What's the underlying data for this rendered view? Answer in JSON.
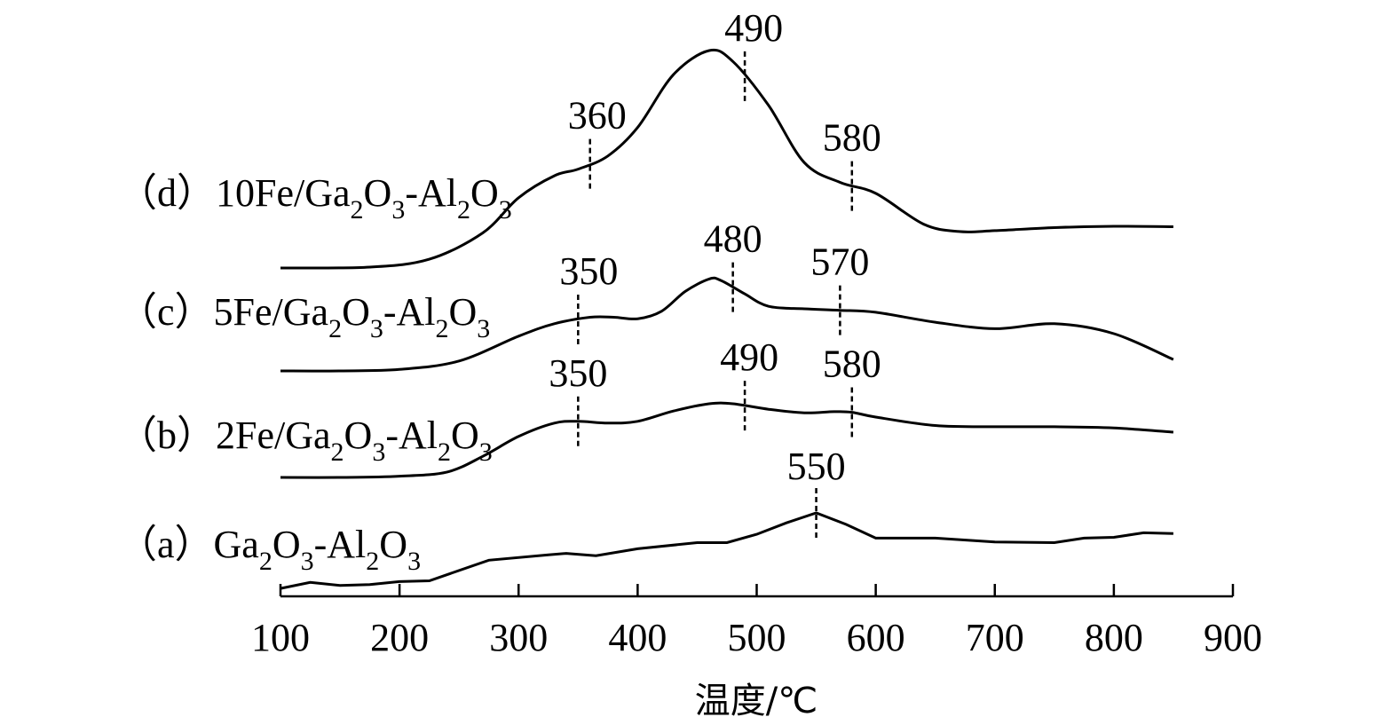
{
  "chart_data": {
    "type": "line",
    "xlabel": "温度/℃",
    "ylabel": "",
    "xlim": [
      100,
      900
    ],
    "x_ticks": [
      100,
      200,
      300,
      400,
      500,
      600,
      700,
      800,
      900
    ],
    "y_axis_shown": false,
    "grid": false,
    "series": [
      {
        "id": "a",
        "label_parts": [
          {
            "t": "（a）Ga"
          },
          {
            "t": "2",
            "sub": true
          },
          {
            "t": "O"
          },
          {
            "t": "3",
            "sub": true
          },
          {
            "t": "-Al"
          },
          {
            "t": "2",
            "sub": true
          },
          {
            "t": "O"
          },
          {
            "t": "3",
            "sub": true
          }
        ],
        "points": [
          [
            100,
            0.01
          ],
          [
            125,
            0.09
          ],
          [
            150,
            0.05
          ],
          [
            175,
            0.06
          ],
          [
            200,
            0.1
          ],
          [
            225,
            0.11
          ],
          [
            275,
            0.38
          ],
          [
            325,
            0.45
          ],
          [
            340,
            0.47
          ],
          [
            365,
            0.44
          ],
          [
            400,
            0.53
          ],
          [
            450,
            0.61
          ],
          [
            475,
            0.61
          ],
          [
            500,
            0.72
          ],
          [
            525,
            0.87
          ],
          [
            550,
            1.0
          ],
          [
            575,
            0.85
          ],
          [
            600,
            0.67
          ],
          [
            650,
            0.67
          ],
          [
            700,
            0.62
          ],
          [
            750,
            0.61
          ],
          [
            775,
            0.67
          ],
          [
            800,
            0.68
          ],
          [
            825,
            0.74
          ],
          [
            850,
            0.73
          ]
        ],
        "peaks": [
          {
            "x": 550,
            "label": "550"
          }
        ]
      },
      {
        "id": "b",
        "label_parts": [
          {
            "t": "（b）2Fe/Ga"
          },
          {
            "t": "2",
            "sub": true
          },
          {
            "t": "O"
          },
          {
            "t": "3",
            "sub": true
          },
          {
            "t": "-Al"
          },
          {
            "t": "2",
            "sub": true
          },
          {
            "t": "O"
          },
          {
            "t": "3",
            "sub": true
          }
        ],
        "points": [
          [
            100,
            0.0
          ],
          [
            150,
            0.0
          ],
          [
            200,
            0.02
          ],
          [
            240,
            0.09
          ],
          [
            270,
            0.35
          ],
          [
            300,
            0.68
          ],
          [
            330,
            0.9
          ],
          [
            350,
            0.93
          ],
          [
            375,
            0.9
          ],
          [
            400,
            0.93
          ],
          [
            430,
            1.1
          ],
          [
            460,
            1.22
          ],
          [
            480,
            1.22
          ],
          [
            510,
            1.13
          ],
          [
            540,
            1.07
          ],
          [
            565,
            1.09
          ],
          [
            580,
            1.08
          ],
          [
            600,
            1.0
          ],
          [
            650,
            0.86
          ],
          [
            700,
            0.84
          ],
          [
            750,
            0.84
          ],
          [
            800,
            0.82
          ],
          [
            850,
            0.75
          ]
        ],
        "peaks": [
          {
            "x": 350,
            "label": "350"
          },
          {
            "x": 490,
            "label": "490"
          },
          {
            "x": 580,
            "label": "580"
          }
        ]
      },
      {
        "id": "c",
        "label_parts": [
          {
            "t": "（c）5Fe/Ga"
          },
          {
            "t": "2",
            "sub": true
          },
          {
            "t": "O"
          },
          {
            "t": "3",
            "sub": true
          },
          {
            "t": "-Al"
          },
          {
            "t": "2",
            "sub": true
          },
          {
            "t": "O"
          },
          {
            "t": "3",
            "sub": true
          }
        ],
        "points": [
          [
            100,
            0.0
          ],
          [
            150,
            0.0
          ],
          [
            200,
            0.03
          ],
          [
            250,
            0.2
          ],
          [
            300,
            0.7
          ],
          [
            330,
            0.95
          ],
          [
            360,
            1.08
          ],
          [
            380,
            1.08
          ],
          [
            400,
            1.05
          ],
          [
            420,
            1.2
          ],
          [
            440,
            1.6
          ],
          [
            460,
            1.85
          ],
          [
            470,
            1.82
          ],
          [
            490,
            1.55
          ],
          [
            510,
            1.3
          ],
          [
            540,
            1.25
          ],
          [
            570,
            1.22
          ],
          [
            600,
            1.18
          ],
          [
            650,
            0.98
          ],
          [
            700,
            0.85
          ],
          [
            750,
            0.95
          ],
          [
            800,
            0.75
          ],
          [
            850,
            0.23
          ]
        ],
        "peaks": [
          {
            "x": 350,
            "label": "350"
          },
          {
            "x": 480,
            "label": "480"
          },
          {
            "x": 570,
            "label": "570"
          }
        ]
      },
      {
        "id": "d",
        "label_parts": [
          {
            "t": "（d）10Fe/Ga"
          },
          {
            "t": "2",
            "sub": true
          },
          {
            "t": "O"
          },
          {
            "t": "3",
            "sub": true
          },
          {
            "t": "-Al"
          },
          {
            "t": "2",
            "sub": true
          },
          {
            "t": "O"
          },
          {
            "t": "3",
            "sub": true
          }
        ],
        "points": [
          [
            100,
            0.0
          ],
          [
            175,
            0.02
          ],
          [
            225,
            0.2
          ],
          [
            270,
            0.8
          ],
          [
            300,
            1.6
          ],
          [
            330,
            2.1
          ],
          [
            350,
            2.25
          ],
          [
            375,
            2.55
          ],
          [
            400,
            3.2
          ],
          [
            430,
            4.4
          ],
          [
            460,
            4.95
          ],
          [
            480,
            4.7
          ],
          [
            510,
            3.7
          ],
          [
            540,
            2.4
          ],
          [
            570,
            1.95
          ],
          [
            600,
            1.7
          ],
          [
            640,
            1.0
          ],
          [
            670,
            0.83
          ],
          [
            700,
            0.85
          ],
          [
            750,
            0.92
          ],
          [
            800,
            0.95
          ],
          [
            850,
            0.94
          ]
        ],
        "peaks": [
          {
            "x": 360,
            "label": "360"
          },
          {
            "x": 490,
            "label": "490"
          },
          {
            "x": 580,
            "label": "580"
          }
        ]
      }
    ]
  }
}
